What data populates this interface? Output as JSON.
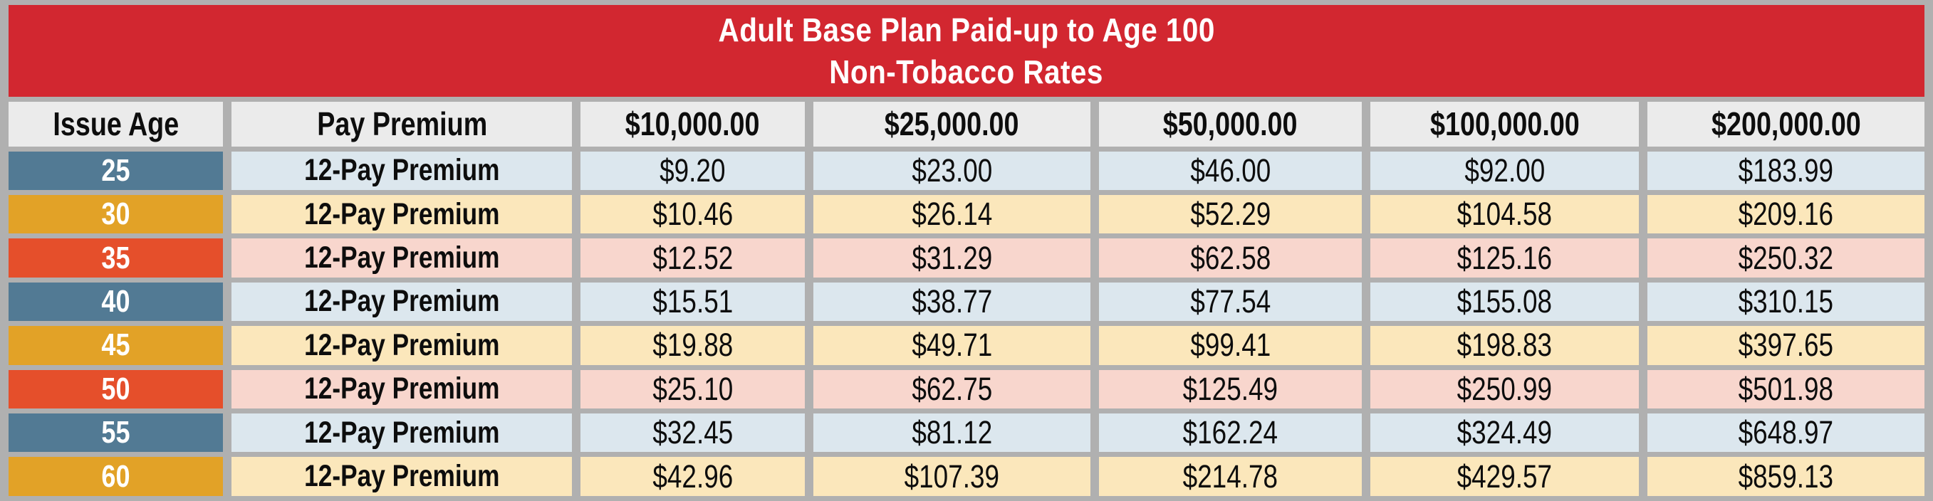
{
  "title": {
    "line1": "Adult Base Plan Paid-up to Age 100",
    "line2": "Non-Tobacco Rates"
  },
  "columns": [
    "Issue Age",
    "Pay Premium",
    "$10,000.00",
    "$25,000.00",
    "$50,000.00",
    "$100,000.00",
    "$200,000.00"
  ],
  "rows": [
    {
      "age": "25",
      "pay": "12-Pay Premium",
      "scheme": "blue",
      "rates": [
        "$9.20",
        "$23.00",
        "$46.00",
        "$92.00",
        "$183.99"
      ]
    },
    {
      "age": "30",
      "pay": "12-Pay Premium",
      "scheme": "gold",
      "rates": [
        "$10.46",
        "$26.14",
        "$52.29",
        "$104.58",
        "$209.16"
      ]
    },
    {
      "age": "35",
      "pay": "12-Pay Premium",
      "scheme": "red",
      "rates": [
        "$12.52",
        "$31.29",
        "$62.58",
        "$125.16",
        "$250.32"
      ]
    },
    {
      "age": "40",
      "pay": "12-Pay Premium",
      "scheme": "blue",
      "rates": [
        "$15.51",
        "$38.77",
        "$77.54",
        "$155.08",
        "$310.15"
      ]
    },
    {
      "age": "45",
      "pay": "12-Pay Premium",
      "scheme": "gold",
      "rates": [
        "$19.88",
        "$49.71",
        "$99.41",
        "$198.83",
        "$397.65"
      ]
    },
    {
      "age": "50",
      "pay": "12-Pay Premium",
      "scheme": "red",
      "rates": [
        "$25.10",
        "$62.75",
        "$125.49",
        "$250.99",
        "$501.98"
      ]
    },
    {
      "age": "55",
      "pay": "12-Pay Premium",
      "scheme": "blue",
      "rates": [
        "$32.45",
        "$81.12",
        "$162.24",
        "$324.49",
        "$648.97"
      ]
    },
    {
      "age": "60",
      "pay": "12-Pay Premium",
      "scheme": "gold",
      "rates": [
        "$42.96",
        "$107.39",
        "$214.78",
        "$429.57",
        "$859.13"
      ]
    }
  ],
  "colors": {
    "banner_red": "#d22730",
    "age_blue": "#527a94",
    "age_gold": "#e2a227",
    "age_red": "#e54f2b",
    "tint_blue": "#dce7ee",
    "tint_gold": "#fbe7bb",
    "tint_red": "#f8d6cd",
    "header_gray": "#ebebeb",
    "frame_gray": "#b0b0b0",
    "title_text": "#ffffff",
    "body_text": "#0d0d0d"
  }
}
